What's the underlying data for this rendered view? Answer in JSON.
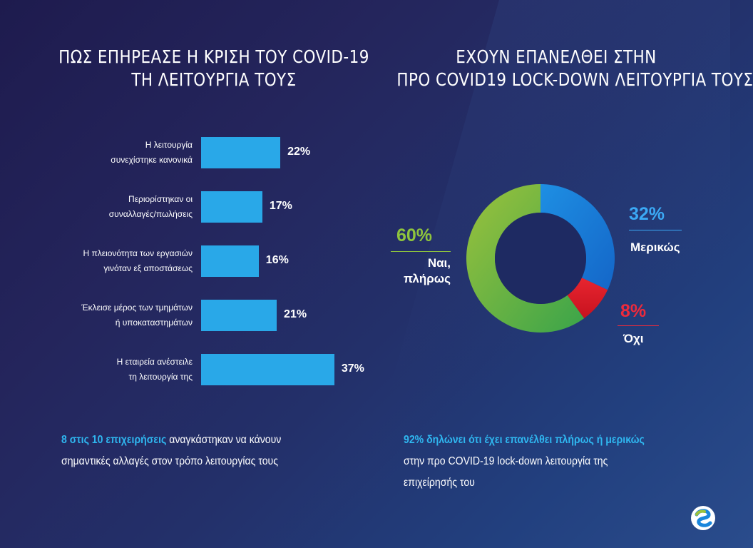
{
  "left_title": {
    "line1": "ΠΩΣ ΕΠΗΡΕΑΣΕ Η ΚΡΙΣΗ ΤΟΥ COVID-19",
    "line2": "ΤΗ ΛΕΙΤΟΥΡΓΙΑ ΤΟΥΣ"
  },
  "right_title": {
    "line1": "ΕΧΟΥΝ ΕΠΑΝΕΛΘΕΙ ΣΤΗΝ",
    "line2": "ΠΡΟ COVID19 LOCK-DOWN ΛΕΙΤΟΥΡΓΙΑ ΤΟΥΣ"
  },
  "chart_data": [
    {
      "type": "bar",
      "orientation": "horizontal",
      "categories": [
        [
          "Η λειτουργία",
          "συνεχίστηκε κανονικά"
        ],
        [
          "Περιορίστηκαν οι",
          "συναλλαγές/πωλήσεις"
        ],
        [
          "Η πλειονότητα των εργασιών",
          "γινόταν εξ αποστάσεως"
        ],
        [
          "Έκλεισε μέρος των τμημάτων",
          "ή υποκαταστημάτων"
        ],
        [
          "Η εταιρεία ανέστειλε",
          "τη λειτουργία της"
        ]
      ],
      "values": [
        22,
        17,
        16,
        21,
        37
      ],
      "value_labels": [
        "22%",
        "17%",
        "16%",
        "21%",
        "37%"
      ],
      "bar_color": "#29a8e8",
      "xlim": [
        0,
        100
      ],
      "grid": false
    },
    {
      "type": "pie",
      "donut": true,
      "slices": [
        {
          "value": 32,
          "pct_label": "32%",
          "label": "Μερικώς",
          "color": "#1a86dc",
          "label_color": "#3ba9f5"
        },
        {
          "value": 8,
          "pct_label": "8%",
          "label": "Όχι",
          "color": "#e21d30",
          "label_color": "#ee2a3b"
        },
        {
          "value": 60,
          "pct_label": "60%",
          "label_lines": [
            "Ναι,",
            "πλήρως"
          ],
          "color": "#46a84a",
          "label_color": "#8ec43d"
        }
      ]
    }
  ],
  "notes": {
    "left": {
      "highlight": "8 στις 10 επιχειρήσεις",
      "rest1": " αναγκάστηκαν να κάνουν",
      "line2": "σημαντικές αλλαγές στον τρόπο λειτουργίας τους"
    },
    "right": {
      "highlight": "92% δηλώνει ότι έχει επανέλθει πλήρως ή μερικώς",
      "line2": "στην προ COVID-19 lock-down λειτουργία της",
      "line3": "επιχείρησής του"
    }
  },
  "colors": {
    "accent_blue": "#2fb7f0",
    "bar": "#29a8e8"
  },
  "logo_icon": "swirl-logo-icon"
}
